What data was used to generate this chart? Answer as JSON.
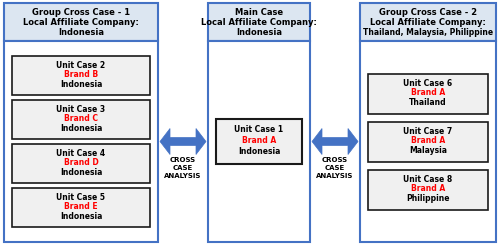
{
  "bg_color": "#ffffff",
  "header_bg": "#dce6f1",
  "box_bg": "#f0f0f0",
  "outer_border": "#4472c4",
  "inner_border": "#1a1a1a",
  "red_color": "#ff0000",
  "black_color": "#000000",
  "arrow_color": "#4472c4",
  "col1_header": [
    "Group Cross Case - 1",
    "Local Affiliate Company:",
    "Indonesia"
  ],
  "col2_header": [
    "Main Case",
    "Local Affiliate Company:",
    "Indonesia"
  ],
  "col3_header": [
    "Group Cross Case - 2",
    "Local Affiliate Company:",
    "Thailand, Malaysia, Philippine"
  ],
  "col1_units": [
    [
      "Unit Case 2",
      "Brand B",
      "Indonesia"
    ],
    [
      "Unit Case 3",
      "Brand C",
      "Indonesia"
    ],
    [
      "Unit Case 4",
      "Brand D",
      "Indonesia"
    ],
    [
      "Unit Case 5",
      "Brand E",
      "Indonesia"
    ]
  ],
  "col2_units": [
    [
      "Unit Case 1",
      "Brand A",
      "Indonesia"
    ]
  ],
  "col3_units": [
    [
      "Unit Case 6",
      "Brand A",
      "Thailand"
    ],
    [
      "Unit Case 7",
      "Brand A",
      "Malaysia"
    ],
    [
      "Unit Case 8",
      "Brand A",
      "Philippine"
    ]
  ],
  "cross_case_left": [
    "CROSS",
    "CASE",
    "ANALYSIS"
  ],
  "cross_case_right": [
    "CROSS",
    "CASE",
    "ANALYSIS"
  ],
  "fig_width": 5.0,
  "fig_height": 2.45
}
